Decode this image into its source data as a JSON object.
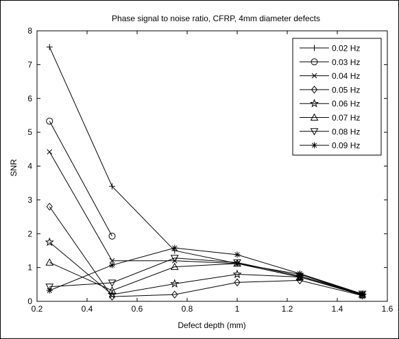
{
  "chart_data": {
    "type": "line",
    "title": "Phase signal to noise ratio, CFRP, 4mm diameter defects",
    "xlabel": "Defect depth (mm)",
    "ylabel": "SNR",
    "xlim": [
      0.2,
      1.6
    ],
    "ylim": [
      0,
      8
    ],
    "xticks": [
      0.2,
      0.4,
      0.6,
      0.8,
      1,
      1.2,
      1.4,
      1.6
    ],
    "xtick_labels": [
      "0.2",
      "0.4",
      "0.6",
      "0.8",
      "1",
      "1.2",
      "1.4",
      "1.6"
    ],
    "yticks": [
      0,
      1,
      2,
      3,
      4,
      5,
      6,
      7,
      8
    ],
    "ytick_labels": [
      "0",
      "1",
      "2",
      "3",
      "4",
      "5",
      "6",
      "7",
      "8"
    ],
    "grid": false,
    "legend_position": "top-right",
    "series": [
      {
        "name": "0.02 Hz",
        "marker": "plus",
        "x": [
          0.25,
          0.5,
          0.75,
          1.0,
          1.25,
          1.5
        ],
        "y": [
          7.52,
          3.4,
          1.5,
          1.12,
          0.8,
          0.2
        ]
      },
      {
        "name": "0.03 Hz",
        "marker": "circle",
        "x": [
          0.25,
          0.5
        ],
        "y": [
          5.33,
          1.93
        ]
      },
      {
        "name": "0.04 Hz",
        "marker": "x",
        "x": [
          0.25,
          0.5,
          0.75,
          1.0,
          1.25,
          1.5
        ],
        "y": [
          4.42,
          1.2,
          1.2,
          1.12,
          0.72,
          0.2
        ]
      },
      {
        "name": "0.05 Hz",
        "marker": "diamond",
        "x": [
          0.25,
          0.5,
          0.75,
          1.0,
          1.25,
          1.5
        ],
        "y": [
          2.8,
          0.14,
          0.2,
          0.56,
          0.62,
          0.17
        ]
      },
      {
        "name": "0.06 Hz",
        "marker": "star",
        "x": [
          0.25,
          0.5,
          0.75,
          1.0,
          1.25,
          1.5
        ],
        "y": [
          1.75,
          0.2,
          0.52,
          0.8,
          0.72,
          0.18
        ]
      },
      {
        "name": "0.07 Hz",
        "marker": "triangle-up",
        "x": [
          0.25,
          0.5,
          0.75,
          1.0,
          1.25,
          1.5
        ],
        "y": [
          1.15,
          0.32,
          1.02,
          1.12,
          0.72,
          0.2
        ]
      },
      {
        "name": "0.08 Hz",
        "marker": "triangle-down",
        "x": [
          0.25,
          0.5,
          0.75,
          1.0,
          1.25,
          1.5
        ],
        "y": [
          0.43,
          0.55,
          1.28,
          1.15,
          0.75,
          0.22
        ]
      },
      {
        "name": "0.09 Hz",
        "marker": "asterisk",
        "x": [
          0.25,
          0.5,
          0.75,
          1.0,
          1.25,
          1.5
        ],
        "y": [
          0.32,
          1.07,
          1.58,
          1.38,
          0.82,
          0.22
        ]
      }
    ]
  }
}
